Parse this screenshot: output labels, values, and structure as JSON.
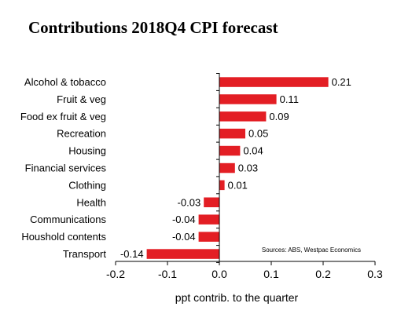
{
  "chart_data": {
    "type": "bar",
    "orientation": "horizontal",
    "title": "Contributions 2018Q4 CPI forecast",
    "xlabel": "ppt contrib. to the quarter",
    "ylabel": "",
    "source_note": "Sources: ABS, Westpac Economics",
    "categories": [
      "Alcohol & tobacco",
      "Fruit & veg",
      "Food ex fruit & veg",
      "Recreation",
      "Housing",
      "Financial services",
      "Clothing",
      "Health",
      "Communications",
      "Houshold contents",
      "Transport"
    ],
    "values": [
      0.21,
      0.11,
      0.09,
      0.05,
      0.04,
      0.03,
      0.01,
      -0.03,
      -0.04,
      -0.04,
      -0.14
    ],
    "value_labels": [
      "0.21",
      "0.11",
      "0.09",
      "0.05",
      "0.04",
      "0.03",
      "0.01",
      "-0.03",
      "-0.04",
      "-0.04",
      "-0.14"
    ],
    "xlim": [
      -0.2,
      0.3
    ],
    "xticks": [
      -0.2,
      -0.1,
      0.0,
      0.1,
      0.2,
      0.3
    ],
    "xtick_labels": [
      "-0.2",
      "-0.1",
      "0.0",
      "0.1",
      "0.2",
      "0.3"
    ],
    "grid": false,
    "legend": "none",
    "bar_color": "#e31e24",
    "title_color": "#e31e24"
  }
}
